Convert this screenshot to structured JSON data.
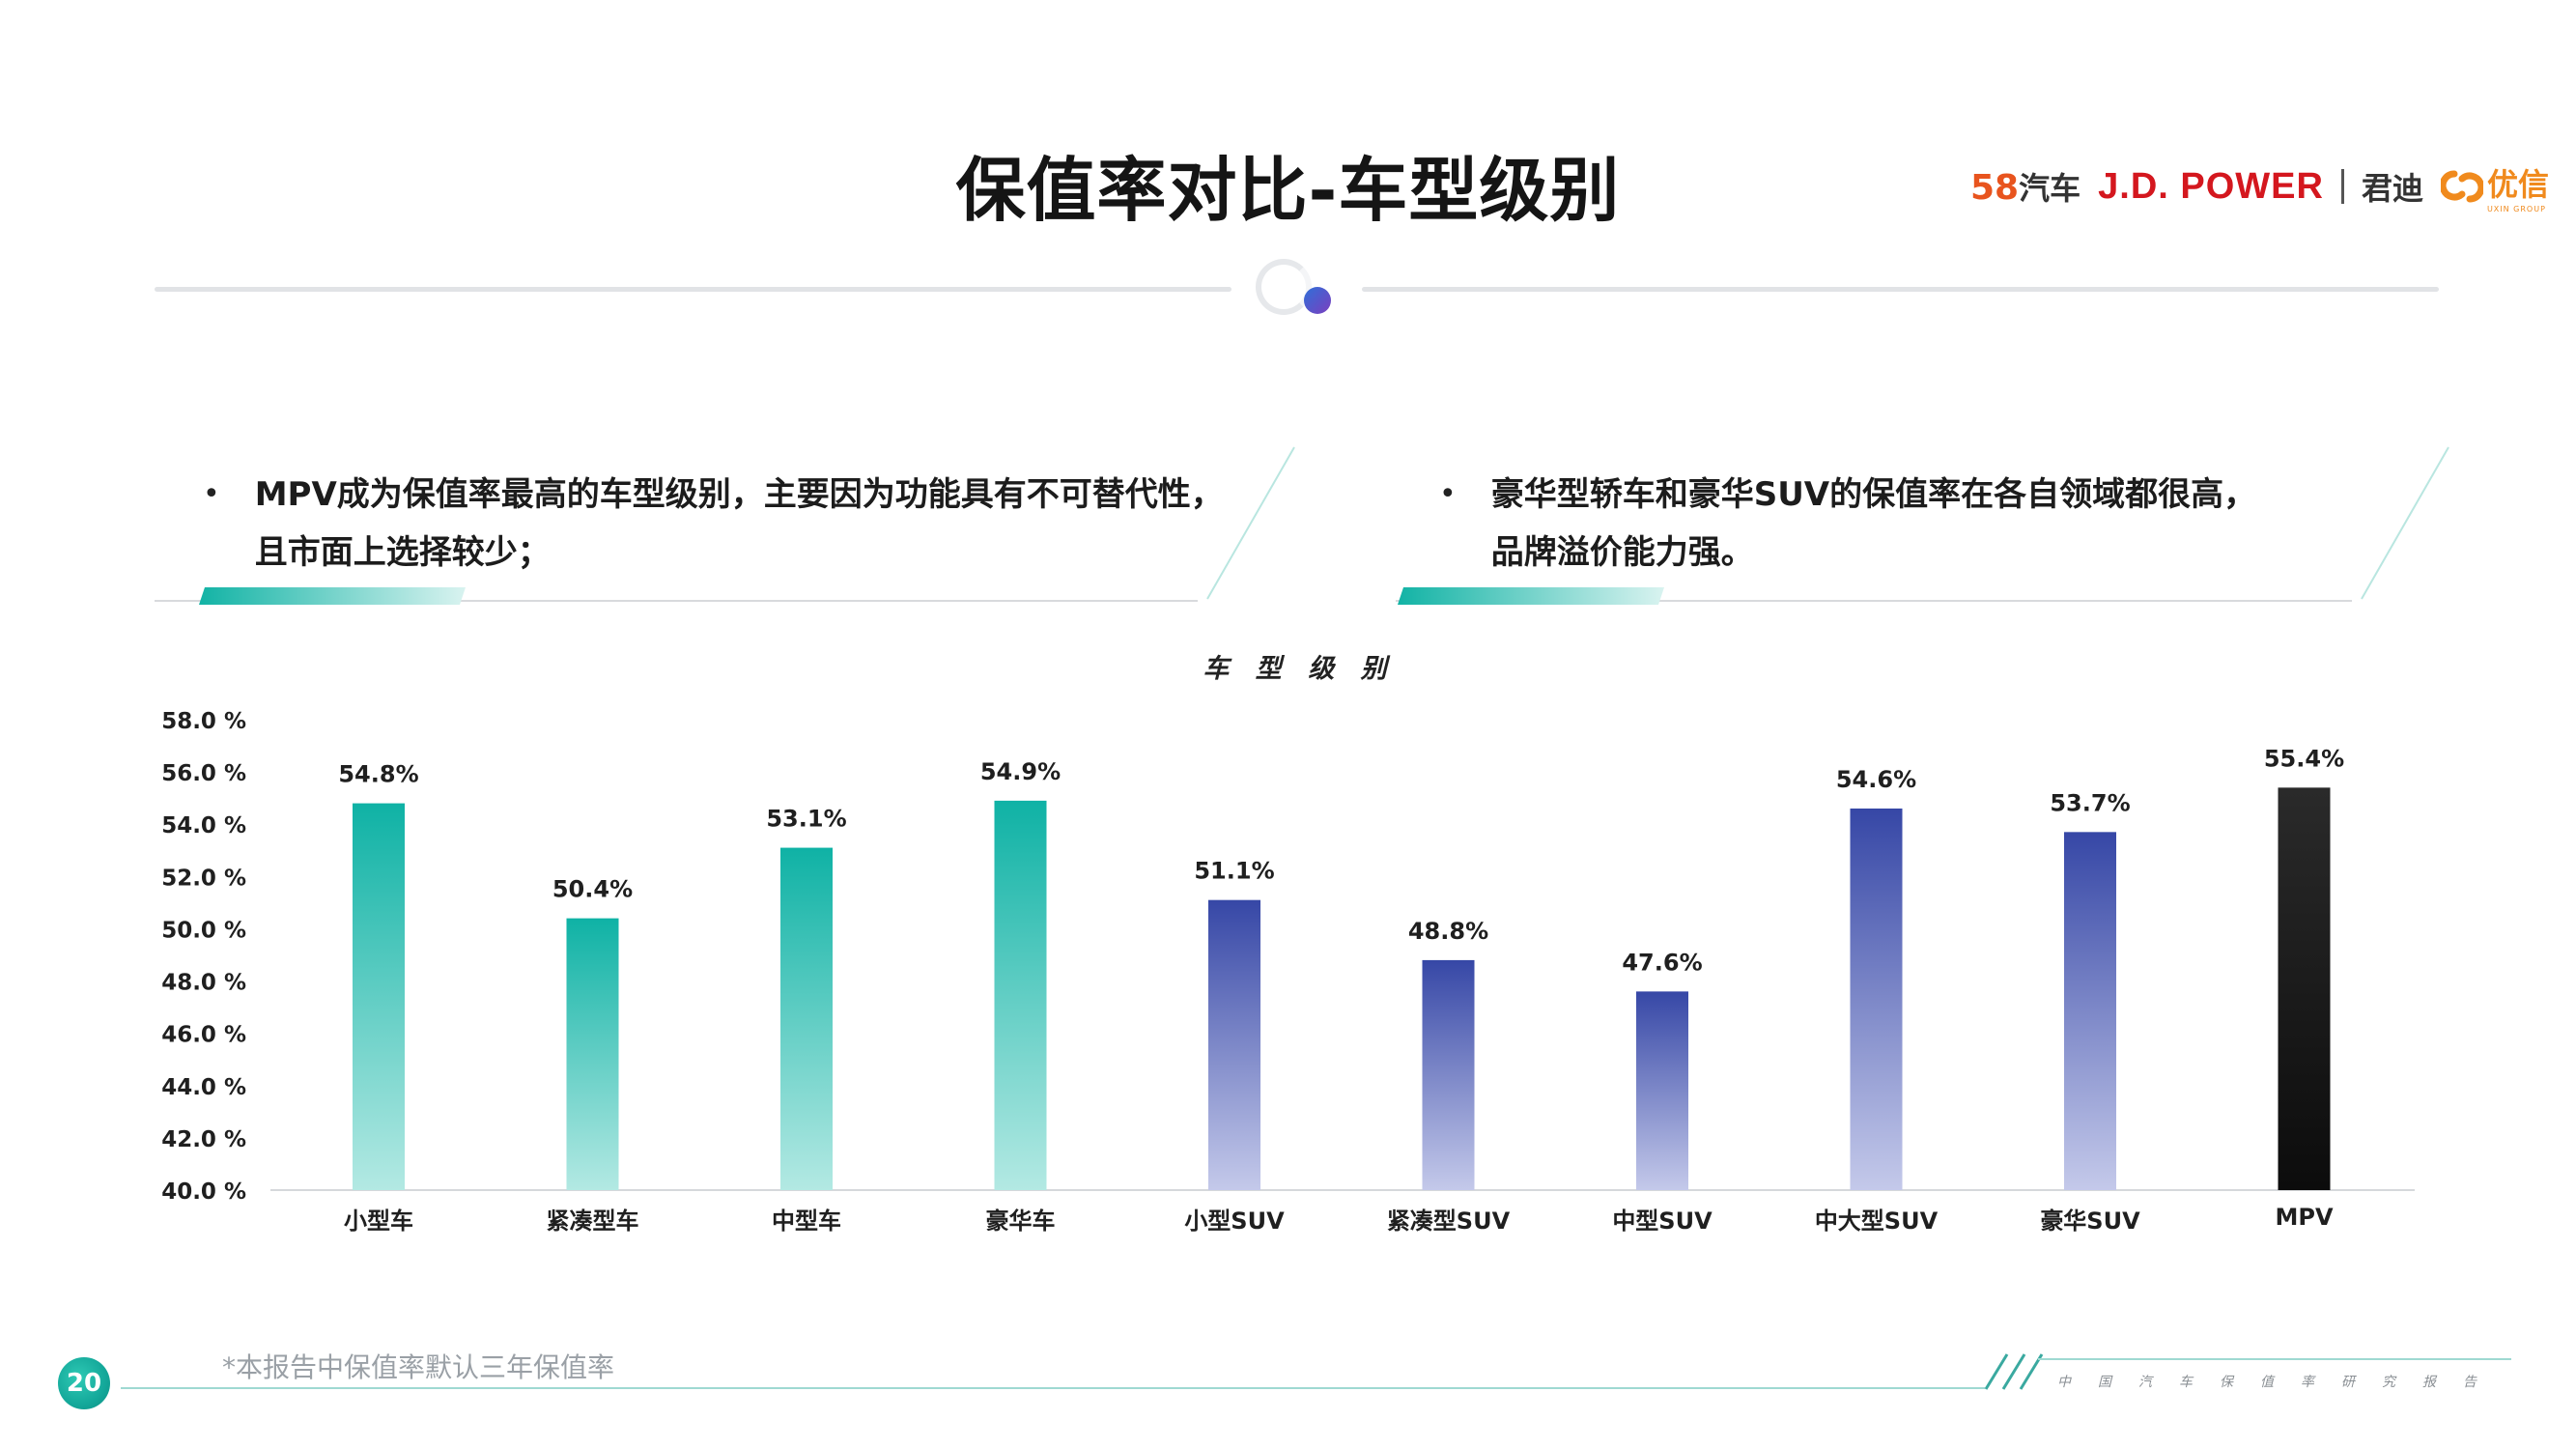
{
  "header": {
    "title": "保值率对比-车型级别",
    "logos": {
      "logo_58_num": "58",
      "logo_58_text": "汽车",
      "jd_power": "J.D. POWER",
      "jundi": "君迪",
      "youxin": "优信",
      "youxin_sub": "UXIN GROUP"
    }
  },
  "bullets": [
    {
      "line1": "MPV成为保值率最高的车型级别，主要因为功能具有不可替代性，",
      "line2": "且市面上选择较少；"
    },
    {
      "line1": "豪华型轿车和豪华SUV的保值率在各自领域都很高，",
      "line2": "品牌溢价能力强。"
    }
  ],
  "bullet_symbol": "•",
  "chart_data": {
    "type": "bar",
    "title": "车 型 级 别",
    "categories": [
      "小型车",
      "紧凑型车",
      "中型车",
      "豪华车",
      "小型SUV",
      "紧凑型SUV",
      "中型SUV",
      "中大型SUV",
      "豪华SUV",
      "MPV"
    ],
    "values": [
      54.8,
      50.4,
      53.1,
      54.9,
      51.1,
      48.8,
      47.6,
      54.6,
      53.7,
      55.4
    ],
    "data_labels": [
      "54.8%",
      "50.4%",
      "53.1%",
      "54.9%",
      "51.1%",
      "48.8%",
      "47.6%",
      "54.6%",
      "53.7%",
      "55.4%"
    ],
    "ylim": [
      40,
      58
    ],
    "yticks": [
      58,
      56,
      54,
      52,
      50,
      48,
      46,
      44,
      42,
      40
    ],
    "ytick_labels": [
      "58.0 %",
      "56.0 %",
      "54.0 %",
      "52.0 %",
      "50.0 %",
      "48.0 %",
      "46.0 %",
      "44.0 %",
      "42.0 %",
      "40.0 %"
    ],
    "grid": false,
    "colors": {
      "group_car": "#11b3a6",
      "group_suv": "#3a4ea8",
      "group_mpv": "#1a1a1a"
    },
    "color_groups": [
      "car",
      "car",
      "car",
      "car",
      "suv",
      "suv",
      "suv",
      "suv",
      "suv",
      "mpv"
    ]
  },
  "footer": {
    "page_number": "20",
    "footnote": "*本报告中保值率默认三年保值率",
    "tagline": "中国汽车保值率研究报告"
  }
}
